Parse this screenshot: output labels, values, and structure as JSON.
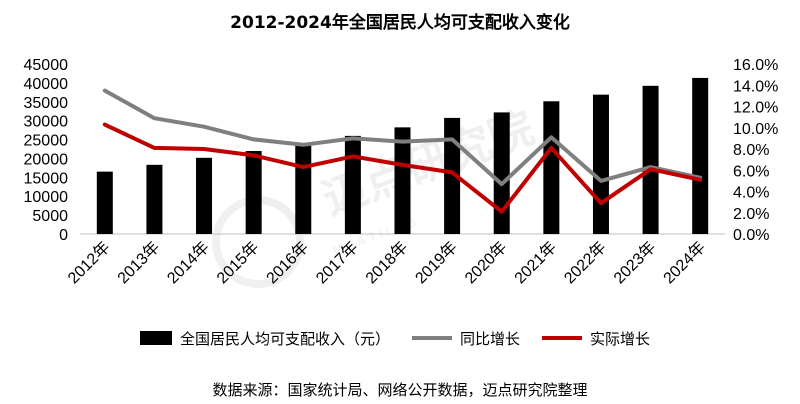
{
  "chart_data": {
    "type": "bar",
    "title": "2012-2024年全国居民人均可支配收入变化",
    "categories": [
      "2012年",
      "2013年",
      "2014年",
      "2015年",
      "2016年",
      "2017年",
      "2018年",
      "2019年",
      "2020年",
      "2021年",
      "2022年",
      "2023年",
      "2024年"
    ],
    "series": [
      {
        "name": "全国居民人均可支配收入（元）",
        "type": "bar",
        "axis": "left",
        "color": "#000000",
        "values": [
          16510,
          18311,
          20167,
          21966,
          23821,
          25974,
          28228,
          30733,
          32189,
          35128,
          36883,
          39218,
          41314
        ]
      },
      {
        "name": "同比增长",
        "type": "line",
        "axis": "right",
        "color": "#7f7f7f",
        "values": [
          13.5,
          10.9,
          10.1,
          8.9,
          8.4,
          9.0,
          8.7,
          8.9,
          4.7,
          9.1,
          5.0,
          6.3,
          5.3
        ]
      },
      {
        "name": "实际增长",
        "type": "line",
        "axis": "right",
        "color": "#c00000",
        "values": [
          10.3,
          8.1,
          8.0,
          7.4,
          6.3,
          7.3,
          6.5,
          5.8,
          2.1,
          8.1,
          2.9,
          6.1,
          5.1
        ]
      }
    ],
    "y_left": {
      "ticks": [
        "0",
        "5000",
        "10000",
        "15000",
        "20000",
        "25000",
        "30000",
        "35000",
        "40000",
        "45000"
      ],
      "ylim": [
        0,
        45000
      ]
    },
    "y_right": {
      "ticks": [
        "0.0%",
        "2.0%",
        "4.0%",
        "6.0%",
        "8.0%",
        "10.0%",
        "12.0%",
        "14.0%",
        "16.0%"
      ],
      "ylim": [
        0,
        16
      ]
    },
    "legend_position": "bottom",
    "grid": false
  },
  "source": "数据来源：国家统计局、网络公开数据，迈点研究院整理",
  "watermark": {
    "text": "迈点研究院",
    "sub": "M E A T I L A B"
  }
}
